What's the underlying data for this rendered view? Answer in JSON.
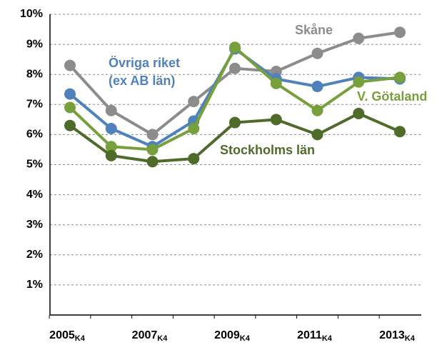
{
  "chart_data": {
    "type": "line",
    "categories": [
      "2005",
      null,
      "2007",
      null,
      "2009",
      null,
      "2011",
      null,
      "2013"
    ],
    "x_label_subscript": "K4",
    "ylim": [
      0,
      10
    ],
    "yticks": [
      {
        "value": 1,
        "label": "1%"
      },
      {
        "value": 2,
        "label": "2%"
      },
      {
        "value": 3,
        "label": "3%"
      },
      {
        "value": 4,
        "label": "4%"
      },
      {
        "value": 5,
        "label": "5%"
      },
      {
        "value": 6,
        "label": "6%"
      },
      {
        "value": 7,
        "label": "7%"
      },
      {
        "value": 8,
        "label": "8%"
      },
      {
        "value": 9,
        "label": "9%"
      },
      {
        "value": 10,
        "label": "10%"
      }
    ],
    "grid": true,
    "series": [
      {
        "name": "Skåne",
        "color": "#8c8c8c",
        "values": [
          8.3,
          6.8,
          6.0,
          7.1,
          8.2,
          8.1,
          8.7,
          9.2,
          9.4
        ]
      },
      {
        "name": "Övriga riket (ex AB län)",
        "color": "#4f81bd",
        "values": [
          7.35,
          6.2,
          5.6,
          6.45,
          8.85,
          7.85,
          7.6,
          7.9,
          7.85
        ]
      },
      {
        "name": "V. Götaland",
        "color": "#77a03c",
        "values": [
          6.9,
          5.6,
          5.5,
          6.2,
          8.9,
          7.7,
          6.8,
          7.75,
          7.9
        ]
      },
      {
        "name": "Stockholms län",
        "color": "#4e6b2a",
        "values": [
          6.3,
          5.3,
          5.1,
          5.2,
          6.4,
          6.5,
          6.0,
          6.7,
          6.1
        ]
      }
    ]
  }
}
